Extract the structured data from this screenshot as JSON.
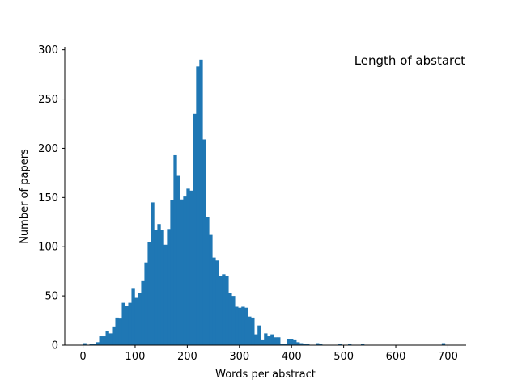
{
  "chart_data": {
    "type": "bar",
    "title": "Length of abstarct",
    "xlabel": "Words per abstract",
    "ylabel": "Number of papers",
    "xlim": [
      -35,
      735
    ],
    "ylim": [
      0,
      303
    ],
    "grid": false,
    "xticks": [
      0,
      100,
      200,
      300,
      400,
      500,
      600,
      700
    ],
    "yticks": [
      0,
      50,
      100,
      150,
      200,
      250,
      300
    ],
    "bin_width": 6.2,
    "bin_starts": [
      0,
      6.2,
      12.4,
      18.6,
      24.8,
      31,
      37.2,
      43.4,
      49.6,
      55.8,
      62,
      68.2,
      74.4,
      80.6,
      86.8,
      93,
      99.2,
      105.4,
      111.6,
      117.8,
      124,
      130.2,
      136.4,
      142.6,
      148.8,
      155,
      161.2,
      167.4,
      173.6,
      179.8,
      186,
      192.2,
      198.4,
      204.6,
      210.8,
      217,
      223.2,
      229.4,
      235.6,
      241.8,
      248,
      254.2,
      260.4,
      266.6,
      272.8,
      279,
      285.2,
      291.4,
      297.6,
      303.8,
      310,
      316.2,
      322.4,
      328.6,
      334.8,
      341,
      347.2,
      353.4,
      359.6,
      365.8,
      372,
      378.2,
      384.4,
      390.6,
      396.8,
      403,
      409.2,
      415.4,
      421.6,
      427.8,
      434,
      440.2,
      446.4,
      452.6,
      458.8,
      465,
      471.2,
      477.4,
      483.6,
      489.8,
      496,
      502.2,
      508.4,
      514.6,
      520.8,
      527,
      533.2,
      539.4,
      545.6,
      551.8,
      558,
      564.2,
      570.4,
      576.6,
      582.8,
      589,
      595.2,
      601.4,
      607.6,
      613.8,
      620,
      626.2,
      632.4,
      638.6,
      644.8,
      651,
      657.2,
      663.4,
      669.6,
      675.8,
      682,
      688.2,
      694.4
    ],
    "values": [
      2,
      0,
      1,
      1,
      3,
      9,
      9,
      14,
      12,
      19,
      28,
      27,
      43,
      40,
      43,
      58,
      48,
      53,
      65,
      84,
      105,
      145,
      117,
      123,
      117,
      102,
      118,
      147,
      193,
      172,
      148,
      151,
      159,
      157,
      235,
      283,
      290,
      209,
      130,
      112,
      89,
      86,
      70,
      72,
      70,
      53,
      50,
      39,
      38,
      39,
      38,
      29,
      28,
      11,
      20,
      5,
      12,
      9,
      11,
      8,
      8,
      1,
      1,
      6,
      6,
      5,
      3,
      2,
      1,
      1,
      0,
      0,
      2,
      1,
      0,
      0,
      0,
      0,
      0,
      1,
      0,
      0,
      1,
      0,
      0,
      0,
      1,
      0,
      0,
      0,
      0,
      0,
      0,
      0,
      0,
      0,
      0,
      0,
      0,
      0,
      0,
      0,
      0,
      0,
      0,
      0,
      0,
      0,
      0,
      0,
      0,
      2
    ]
  }
}
